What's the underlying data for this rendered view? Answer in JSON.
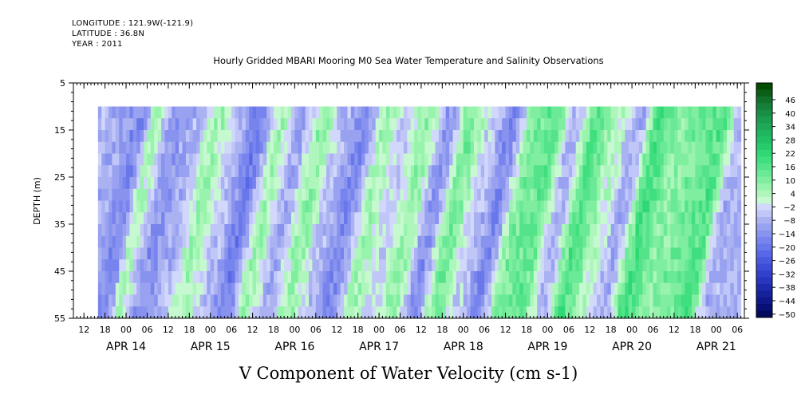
{
  "header": {
    "longitude": "LONGITUDE : 121.9W(-121.9)",
    "latitude": "LATITUDE : 36.8N",
    "year": "YEAR : 2011"
  },
  "chart_data": {
    "type": "heatmap",
    "title": "Hourly Gridded MBARI Mooring M0 Sea Water Temperature and Salinity Observations",
    "ylabel": "DEPTH (m)",
    "xlabel": "V Component of Water Velocity (cm s-1)",
    "ylim": [
      5,
      55
    ],
    "y_inverted": true,
    "y_ticks": [
      5,
      15,
      25,
      35,
      45,
      55
    ],
    "data_depth_range": [
      10,
      55
    ],
    "x_range": [
      "2011-04-13T09:00",
      "2011-04-21T08:00"
    ],
    "data_time_range": [
      "2011-04-13T16:00",
      "2011-04-21T07:00"
    ],
    "hour_ticks": [
      {
        "t": "2011-04-13T12:00",
        "label": "12"
      },
      {
        "t": "2011-04-13T18:00",
        "label": "18"
      },
      {
        "t": "2011-04-14T00:00",
        "label": "00"
      },
      {
        "t": "2011-04-14T06:00",
        "label": "06"
      },
      {
        "t": "2011-04-14T12:00",
        "label": "12"
      },
      {
        "t": "2011-04-14T18:00",
        "label": "18"
      },
      {
        "t": "2011-04-15T00:00",
        "label": "00"
      },
      {
        "t": "2011-04-15T06:00",
        "label": "06"
      },
      {
        "t": "2011-04-15T12:00",
        "label": "12"
      },
      {
        "t": "2011-04-15T18:00",
        "label": "18"
      },
      {
        "t": "2011-04-16T00:00",
        "label": "00"
      },
      {
        "t": "2011-04-16T06:00",
        "label": "06"
      },
      {
        "t": "2011-04-16T12:00",
        "label": "12"
      },
      {
        "t": "2011-04-16T18:00",
        "label": "18"
      },
      {
        "t": "2011-04-17T00:00",
        "label": "00"
      },
      {
        "t": "2011-04-17T06:00",
        "label": "06"
      },
      {
        "t": "2011-04-17T12:00",
        "label": "12"
      },
      {
        "t": "2011-04-17T18:00",
        "label": "18"
      },
      {
        "t": "2011-04-18T00:00",
        "label": "00"
      },
      {
        "t": "2011-04-18T06:00",
        "label": "06"
      },
      {
        "t": "2011-04-18T12:00",
        "label": "12"
      },
      {
        "t": "2011-04-18T18:00",
        "label": "18"
      },
      {
        "t": "2011-04-19T00:00",
        "label": "00"
      },
      {
        "t": "2011-04-19T06:00",
        "label": "06"
      },
      {
        "t": "2011-04-19T12:00",
        "label": "12"
      },
      {
        "t": "2011-04-19T18:00",
        "label": "18"
      },
      {
        "t": "2011-04-20T00:00",
        "label": "00"
      },
      {
        "t": "2011-04-20T06:00",
        "label": "06"
      },
      {
        "t": "2011-04-20T12:00",
        "label": "12"
      },
      {
        "t": "2011-04-20T18:00",
        "label": "18"
      },
      {
        "t": "2011-04-21T00:00",
        "label": "00"
      },
      {
        "t": "2011-04-21T06:00",
        "label": "06"
      }
    ],
    "date_labels": [
      {
        "t": "2011-04-14T00:00",
        "label": "APR 14"
      },
      {
        "t": "2011-04-15T00:00",
        "label": "APR 15"
      },
      {
        "t": "2011-04-16T00:00",
        "label": "APR 16"
      },
      {
        "t": "2011-04-17T00:00",
        "label": "APR 17"
      },
      {
        "t": "2011-04-18T00:00",
        "label": "APR 18"
      },
      {
        "t": "2011-04-19T00:00",
        "label": "APR 19"
      },
      {
        "t": "2011-04-20T00:00",
        "label": "APR 20"
      },
      {
        "t": "2011-04-21T00:00",
        "label": "APR 21"
      }
    ],
    "v_profile": [
      {
        "t": "2011-04-13T16:00",
        "v": -6
      },
      {
        "t": "2011-04-13T22:00",
        "v": -10
      },
      {
        "t": "2011-04-14T04:00",
        "v": -16
      },
      {
        "t": "2011-04-14T08:00",
        "v": 4
      },
      {
        "t": "2011-04-14T14:00",
        "v": -14
      },
      {
        "t": "2011-04-14T20:00",
        "v": -8
      },
      {
        "t": "2011-04-15T02:00",
        "v": 6
      },
      {
        "t": "2011-04-15T08:00",
        "v": -6
      },
      {
        "t": "2011-04-15T14:00",
        "v": -18
      },
      {
        "t": "2011-04-15T20:00",
        "v": 6
      },
      {
        "t": "2011-04-16T02:00",
        "v": -10
      },
      {
        "t": "2011-04-16T08:00",
        "v": 8
      },
      {
        "t": "2011-04-16T14:00",
        "v": -6
      },
      {
        "t": "2011-04-16T20:00",
        "v": -16
      },
      {
        "t": "2011-04-17T02:00",
        "v": 6
      },
      {
        "t": "2011-04-17T08:00",
        "v": -4
      },
      {
        "t": "2011-04-17T14:00",
        "v": 8
      },
      {
        "t": "2011-04-17T20:00",
        "v": -14
      },
      {
        "t": "2011-04-18T02:00",
        "v": 12
      },
      {
        "t": "2011-04-18T08:00",
        "v": -4
      },
      {
        "t": "2011-04-18T14:00",
        "v": -16
      },
      {
        "t": "2011-04-18T20:00",
        "v": 10
      },
      {
        "t": "2011-04-19T02:00",
        "v": 14
      },
      {
        "t": "2011-04-19T08:00",
        "v": -8
      },
      {
        "t": "2011-04-19T14:00",
        "v": 16
      },
      {
        "t": "2011-04-19T20:00",
        "v": 4
      },
      {
        "t": "2011-04-20T02:00",
        "v": -10
      },
      {
        "t": "2011-04-20T08:00",
        "v": 18
      },
      {
        "t": "2011-04-20T14:00",
        "v": 8
      },
      {
        "t": "2011-04-20T20:00",
        "v": 12
      },
      {
        "t": "2011-04-21T02:00",
        "v": 16
      },
      {
        "t": "2011-04-21T07:00",
        "v": -8
      }
    ],
    "colorbar": {
      "labels": [
        "46",
        "40",
        "34",
        "28",
        "22",
        "16",
        "10",
        "4",
        "-2",
        "-8",
        "-14",
        "-20",
        "-26",
        "-32",
        "-38",
        "-44",
        "-50"
      ],
      "levels": [
        {
          "value": 52,
          "color": "#004d00"
        },
        {
          "value": 49,
          "color": "#0b5e17"
        },
        {
          "value": 46,
          "color": "#12702a"
        },
        {
          "value": 43,
          "color": "#15803a"
        },
        {
          "value": 40,
          "color": "#198f45"
        },
        {
          "value": 37,
          "color": "#1c9c4f"
        },
        {
          "value": 34,
          "color": "#1ea857"
        },
        {
          "value": 31,
          "color": "#20b55f"
        },
        {
          "value": 28,
          "color": "#22c066"
        },
        {
          "value": 25,
          "color": "#27cb6d"
        },
        {
          "value": 22,
          "color": "#2fd775"
        },
        {
          "value": 19,
          "color": "#3fdf7f"
        },
        {
          "value": 16,
          "color": "#55e38a"
        },
        {
          "value": 13,
          "color": "#6ae996"
        },
        {
          "value": 10,
          "color": "#7fee9f"
        },
        {
          "value": 7,
          "color": "#98f3ad"
        },
        {
          "value": 4,
          "color": "#aef6bc"
        },
        {
          "value": 1,
          "color": "#c6f9cf"
        },
        {
          "value": -2,
          "color": "#d1d8fb"
        },
        {
          "value": -5,
          "color": "#c0c6f7"
        },
        {
          "value": -8,
          "color": "#aab2f2"
        },
        {
          "value": -11,
          "color": "#98a2f0"
        },
        {
          "value": -14,
          "color": "#8893ef"
        },
        {
          "value": -17,
          "color": "#7884ed"
        },
        {
          "value": -20,
          "color": "#6877ea"
        },
        {
          "value": -23,
          "color": "#5867e7"
        },
        {
          "value": -26,
          "color": "#4a59e0"
        },
        {
          "value": -29,
          "color": "#3d4cd8"
        },
        {
          "value": -32,
          "color": "#3240cc"
        },
        {
          "value": -35,
          "color": "#2835bf"
        },
        {
          "value": -38,
          "color": "#1f2bae"
        },
        {
          "value": -41,
          "color": "#16219c"
        },
        {
          "value": -44,
          "color": "#0f1889"
        },
        {
          "value": -47,
          "color": "#080f75"
        },
        {
          "value": -50,
          "color": "#030a5e"
        }
      ]
    }
  }
}
